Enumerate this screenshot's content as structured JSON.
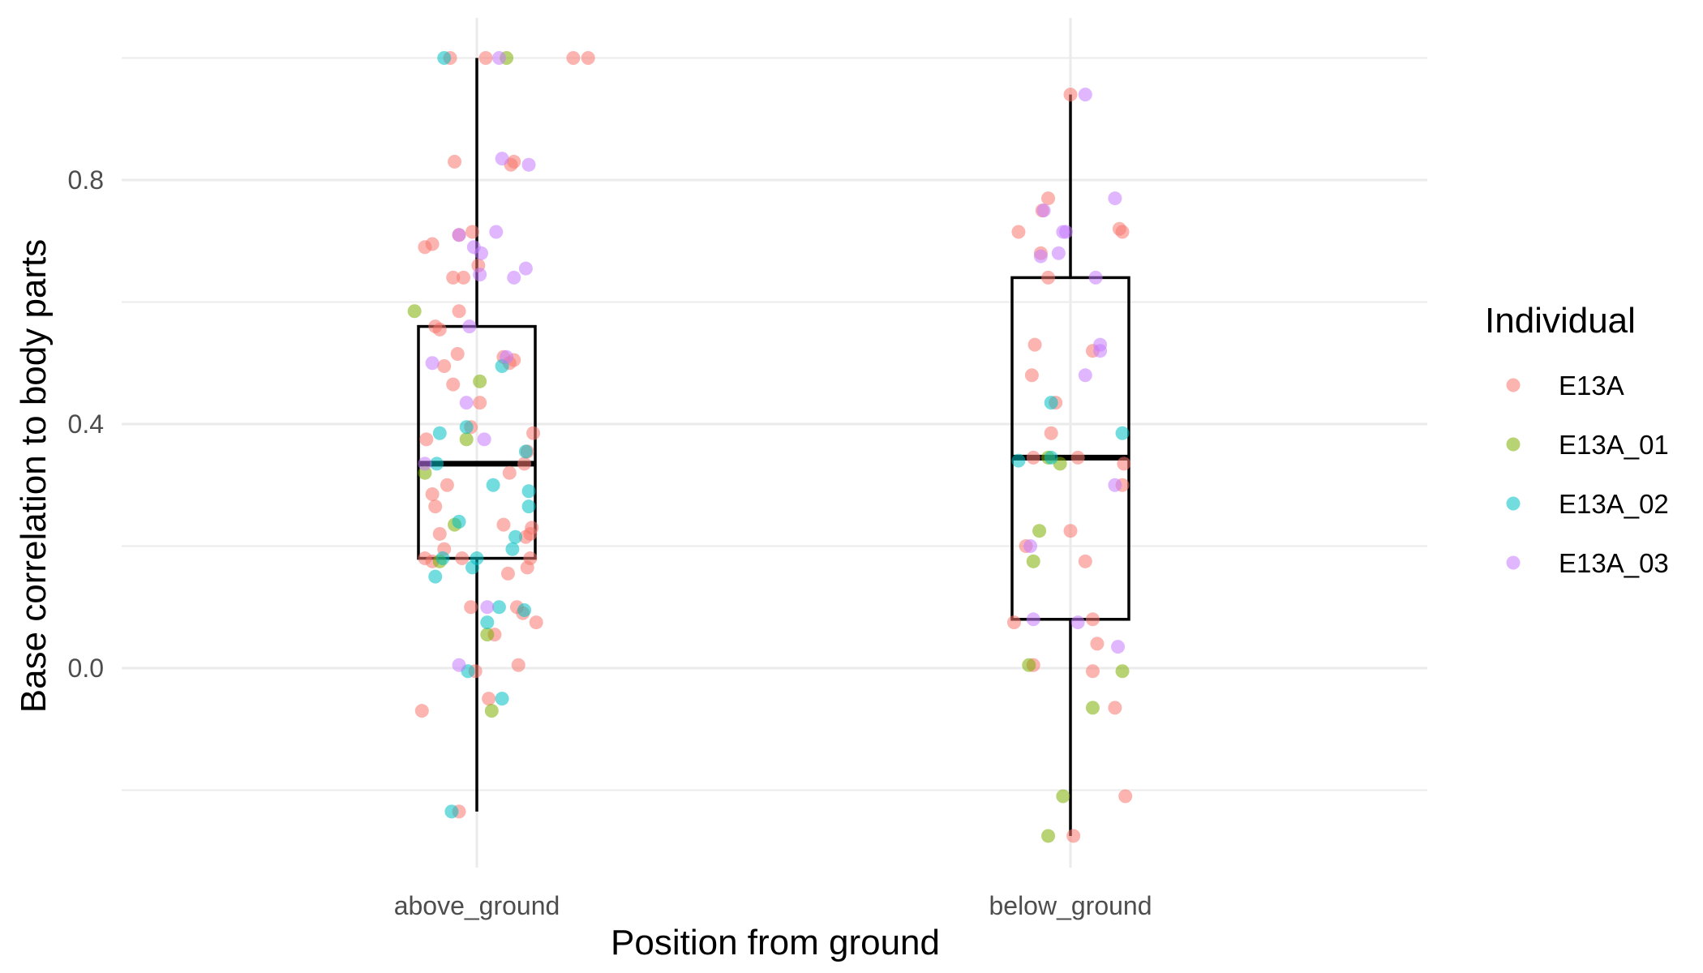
{
  "chart_data": {
    "type": "box",
    "xlabel": "Position from ground",
    "ylabel": "Base correlation to body parts",
    "categories": [
      "above_ground",
      "below_ground"
    ],
    "ylim": [
      -0.33,
      1.06
    ],
    "y_ticks": [
      0.0,
      0.4,
      0.8
    ],
    "y_tick_labels": [
      "0.0",
      "0.4",
      "0.8"
    ],
    "grid": true,
    "legend": {
      "title": "Individual",
      "position": "right",
      "entries": [
        {
          "name": "E13A",
          "color": "#F8766D"
        },
        {
          "name": "E13A_01",
          "color": "#7CAE00"
        },
        {
          "name": "E13A_02",
          "color": "#00BFC4"
        },
        {
          "name": "E13A_03",
          "color": "#C77CFF"
        }
      ]
    },
    "boxes": [
      {
        "category": "above_ground",
        "q1": 0.18,
        "median": 0.335,
        "q3": 0.56,
        "whisker_low": -0.235,
        "whisker_high": 1.0
      },
      {
        "category": "below_ground",
        "q1": 0.08,
        "median": 0.345,
        "q3": 0.64,
        "whisker_low": -0.275,
        "whisker_high": 0.94
      }
    ],
    "point_alpha": 0.55,
    "series": [
      {
        "name": "E13A",
        "points": [
          [
            "above_ground",
            -0.18,
            1.0
          ],
          [
            "above_ground",
            0.06,
            1.0
          ],
          [
            "above_ground",
            0.65,
            1.0
          ],
          [
            "above_ground",
            0.75,
            1.0
          ],
          [
            "above_ground",
            -0.15,
            0.83
          ],
          [
            "above_ground",
            0.23,
            0.825
          ],
          [
            "above_ground",
            0.25,
            0.83
          ],
          [
            "above_ground",
            -0.35,
            0.69
          ],
          [
            "above_ground",
            -0.3,
            0.695
          ],
          [
            "above_ground",
            -0.12,
            0.71
          ],
          [
            "above_ground",
            -0.03,
            0.715
          ],
          [
            "above_ground",
            0.01,
            0.66
          ],
          [
            "above_ground",
            -0.16,
            0.64
          ],
          [
            "above_ground",
            -0.09,
            0.64
          ],
          [
            "above_ground",
            -0.12,
            0.585
          ],
          [
            "above_ground",
            -0.28,
            0.56
          ],
          [
            "above_ground",
            -0.25,
            0.555
          ],
          [
            "above_ground",
            -0.13,
            0.515
          ],
          [
            "above_ground",
            -0.22,
            0.495
          ],
          [
            "above_ground",
            0.18,
            0.51
          ],
          [
            "above_ground",
            0.25,
            0.505
          ],
          [
            "above_ground",
            0.22,
            0.5
          ],
          [
            "above_ground",
            -0.16,
            0.465
          ],
          [
            "above_ground",
            0.02,
            0.435
          ],
          [
            "above_ground",
            -0.04,
            0.395
          ],
          [
            "above_ground",
            -0.34,
            0.375
          ],
          [
            "above_ground",
            0.38,
            0.385
          ],
          [
            "above_ground",
            0.34,
            0.355
          ],
          [
            "above_ground",
            0.32,
            0.335
          ],
          [
            "above_ground",
            0.22,
            0.32
          ],
          [
            "above_ground",
            -0.2,
            0.3
          ],
          [
            "above_ground",
            -0.3,
            0.285
          ],
          [
            "above_ground",
            -0.28,
            0.265
          ],
          [
            "above_ground",
            0.18,
            0.235
          ],
          [
            "above_ground",
            0.37,
            0.23
          ],
          [
            "above_ground",
            -0.25,
            0.22
          ],
          [
            "above_ground",
            0.36,
            0.22
          ],
          [
            "above_ground",
            0.33,
            0.215
          ],
          [
            "above_ground",
            -0.22,
            0.195
          ],
          [
            "above_ground",
            -0.35,
            0.18
          ],
          [
            "above_ground",
            -0.1,
            0.18
          ],
          [
            "above_ground",
            0.36,
            0.18
          ],
          [
            "above_ground",
            -0.3,
            0.175
          ],
          [
            "above_ground",
            0.34,
            0.165
          ],
          [
            "above_ground",
            0.21,
            0.155
          ],
          [
            "above_ground",
            -0.04,
            0.1
          ],
          [
            "above_ground",
            0.27,
            0.1
          ],
          [
            "above_ground",
            0.31,
            0.09
          ],
          [
            "above_ground",
            0.4,
            0.075
          ],
          [
            "above_ground",
            0.12,
            0.055
          ],
          [
            "above_ground",
            -0.01,
            -0.005
          ],
          [
            "above_ground",
            0.28,
            0.005
          ],
          [
            "above_ground",
            -0.37,
            -0.07
          ],
          [
            "above_ground",
            0.08,
            -0.05
          ],
          [
            "above_ground",
            -0.12,
            -0.235
          ],
          [
            "below_ground",
            0.0,
            0.94
          ],
          [
            "below_ground",
            -0.15,
            0.77
          ],
          [
            "below_ground",
            -0.19,
            0.75
          ],
          [
            "below_ground",
            -0.35,
            0.715
          ],
          [
            "below_ground",
            0.33,
            0.72
          ],
          [
            "below_ground",
            0.35,
            0.715
          ],
          [
            "below_ground",
            -0.2,
            0.68
          ],
          [
            "below_ground",
            -0.15,
            0.64
          ],
          [
            "below_ground",
            -0.24,
            0.53
          ],
          [
            "below_ground",
            0.15,
            0.52
          ],
          [
            "below_ground",
            -0.26,
            0.48
          ],
          [
            "below_ground",
            -0.1,
            0.435
          ],
          [
            "below_ground",
            -0.13,
            0.385
          ],
          [
            "below_ground",
            -0.25,
            0.345
          ],
          [
            "below_ground",
            0.05,
            0.345
          ],
          [
            "below_ground",
            0.36,
            0.335
          ],
          [
            "below_ground",
            0.35,
            0.3
          ],
          [
            "below_ground",
            0.0,
            0.225
          ],
          [
            "below_ground",
            -0.3,
            0.2
          ],
          [
            "below_ground",
            0.1,
            0.175
          ],
          [
            "below_ground",
            -0.38,
            0.075
          ],
          [
            "below_ground",
            0.15,
            0.08
          ],
          [
            "below_ground",
            0.18,
            0.04
          ],
          [
            "below_ground",
            -0.25,
            0.005
          ],
          [
            "below_ground",
            0.15,
            -0.005
          ],
          [
            "below_ground",
            0.3,
            -0.065
          ],
          [
            "below_ground",
            0.37,
            -0.21
          ],
          [
            "below_ground",
            0.02,
            -0.275
          ]
        ]
      },
      {
        "name": "E13A_01",
        "points": [
          [
            "above_ground",
            0.2,
            1.0
          ],
          [
            "above_ground",
            -0.42,
            0.585
          ],
          [
            "above_ground",
            0.02,
            0.47
          ],
          [
            "above_ground",
            -0.07,
            0.375
          ],
          [
            "above_ground",
            -0.35,
            0.32
          ],
          [
            "above_ground",
            -0.15,
            0.235
          ],
          [
            "above_ground",
            -0.25,
            0.175
          ],
          [
            "above_ground",
            0.07,
            0.055
          ],
          [
            "above_ground",
            0.1,
            -0.07
          ],
          [
            "below_ground",
            -0.15,
            0.345
          ],
          [
            "below_ground",
            -0.07,
            0.335
          ],
          [
            "below_ground",
            -0.21,
            0.225
          ],
          [
            "below_ground",
            -0.25,
            0.175
          ],
          [
            "below_ground",
            -0.28,
            0.005
          ],
          [
            "below_ground",
            0.35,
            -0.005
          ],
          [
            "below_ground",
            0.15,
            -0.065
          ],
          [
            "below_ground",
            -0.05,
            -0.21
          ],
          [
            "below_ground",
            -0.15,
            -0.275
          ]
        ]
      },
      {
        "name": "E13A_02",
        "points": [
          [
            "above_ground",
            -0.22,
            1.0
          ],
          [
            "above_ground",
            0.17,
            0.495
          ],
          [
            "above_ground",
            -0.25,
            0.385
          ],
          [
            "above_ground",
            -0.07,
            0.395
          ],
          [
            "above_ground",
            0.33,
            0.355
          ],
          [
            "above_ground",
            -0.27,
            0.335
          ],
          [
            "above_ground",
            0.35,
            0.29
          ],
          [
            "above_ground",
            0.35,
            0.265
          ],
          [
            "above_ground",
            0.11,
            0.3
          ],
          [
            "above_ground",
            -0.12,
            0.24
          ],
          [
            "above_ground",
            0.24,
            0.195
          ],
          [
            "above_ground",
            0.26,
            0.215
          ],
          [
            "above_ground",
            -0.23,
            0.18
          ],
          [
            "above_ground",
            0.0,
            0.18
          ],
          [
            "above_ground",
            -0.03,
            0.165
          ],
          [
            "above_ground",
            -0.28,
            0.15
          ],
          [
            "above_ground",
            0.15,
            0.1
          ],
          [
            "above_ground",
            0.32,
            0.095
          ],
          [
            "above_ground",
            0.07,
            0.075
          ],
          [
            "above_ground",
            -0.06,
            -0.005
          ],
          [
            "above_ground",
            0.17,
            -0.05
          ],
          [
            "above_ground",
            -0.17,
            -0.235
          ],
          [
            "below_ground",
            -0.35,
            0.34
          ],
          [
            "below_ground",
            -0.13,
            0.345
          ],
          [
            "below_ground",
            -0.13,
            0.435
          ],
          [
            "below_ground",
            0.35,
            0.385
          ]
        ]
      },
      {
        "name": "E13A_03",
        "points": [
          [
            "above_ground",
            0.15,
            1.0
          ],
          [
            "above_ground",
            0.17,
            0.835
          ],
          [
            "above_ground",
            0.35,
            0.825
          ],
          [
            "above_ground",
            -0.12,
            0.71
          ],
          [
            "above_ground",
            0.13,
            0.715
          ],
          [
            "above_ground",
            -0.02,
            0.69
          ],
          [
            "above_ground",
            0.03,
            0.68
          ],
          [
            "above_ground",
            0.33,
            0.655
          ],
          [
            "above_ground",
            0.02,
            0.645
          ],
          [
            "above_ground",
            0.25,
            0.64
          ],
          [
            "above_ground",
            -0.05,
            0.56
          ],
          [
            "above_ground",
            0.2,
            0.51
          ],
          [
            "above_ground",
            -0.3,
            0.5
          ],
          [
            "above_ground",
            -0.07,
            0.435
          ],
          [
            "above_ground",
            0.05,
            0.375
          ],
          [
            "above_ground",
            -0.35,
            0.335
          ],
          [
            "above_ground",
            0.07,
            0.1
          ],
          [
            "above_ground",
            -0.12,
            0.005
          ],
          [
            "below_ground",
            0.1,
            0.94
          ],
          [
            "below_ground",
            0.3,
            0.77
          ],
          [
            "below_ground",
            -0.18,
            0.75
          ],
          [
            "below_ground",
            -0.03,
            0.715
          ],
          [
            "below_ground",
            -0.05,
            0.715
          ],
          [
            "below_ground",
            -0.08,
            0.68
          ],
          [
            "below_ground",
            -0.2,
            0.675
          ],
          [
            "below_ground",
            0.17,
            0.64
          ],
          [
            "below_ground",
            0.2,
            0.52
          ],
          [
            "below_ground",
            0.1,
            0.48
          ],
          [
            "below_ground",
            0.2,
            0.53
          ],
          [
            "below_ground",
            0.3,
            0.3
          ],
          [
            "below_ground",
            -0.27,
            0.2
          ],
          [
            "below_ground",
            -0.25,
            0.08
          ],
          [
            "below_ground",
            0.05,
            0.075
          ],
          [
            "below_ground",
            0.32,
            0.035
          ]
        ]
      }
    ]
  }
}
